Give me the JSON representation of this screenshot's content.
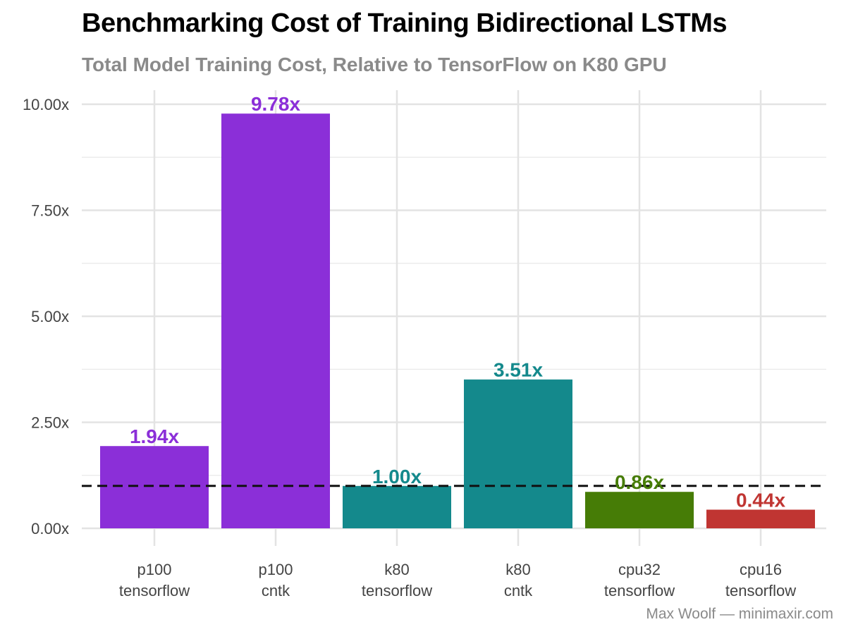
{
  "chart_data": {
    "type": "bar",
    "title": "Benchmarking Cost of Training Bidirectional LSTMs",
    "subtitle": "Total Model Training Cost, Relative to TensorFlow on K80 GPU",
    "caption": "Max Woolf — minimaxir.com",
    "categories": [
      [
        "p100",
        "tensorflow"
      ],
      [
        "p100",
        "cntk"
      ],
      [
        "k80",
        "tensorflow"
      ],
      [
        "k80",
        "cntk"
      ],
      [
        "cpu32",
        "tensorflow"
      ],
      [
        "cpu16",
        "tensorflow"
      ]
    ],
    "values": [
      1.94,
      9.78,
      1.0,
      3.51,
      0.86,
      0.44
    ],
    "value_labels": [
      "1.94x",
      "9.78x",
      "1.00x",
      "3.51x",
      "0.86x",
      "0.44x"
    ],
    "colors": [
      "#8b2fd8",
      "#8b2fd8",
      "#14898c",
      "#14898c",
      "#467c06",
      "#c03532"
    ],
    "ylim": [
      0,
      10
    ],
    "yticks": [
      0,
      2.5,
      5,
      7.5,
      10
    ],
    "ytick_labels": [
      "0.00x",
      "2.50x",
      "5.00x",
      "7.50x",
      "10.00x"
    ],
    "reference_line": 1.0,
    "grid": true,
    "xlabel": "",
    "ylabel": ""
  }
}
